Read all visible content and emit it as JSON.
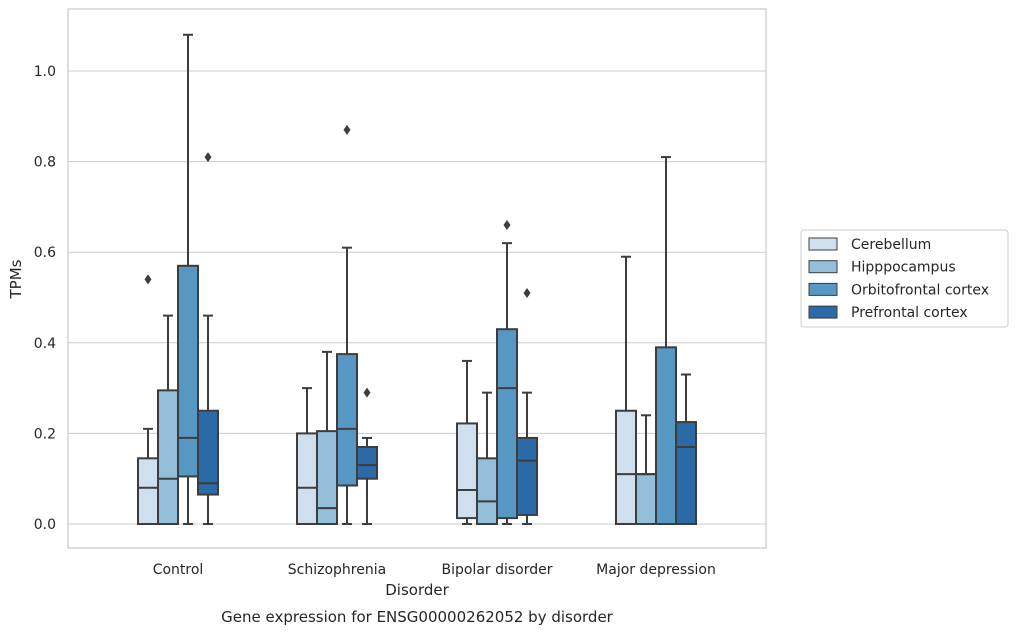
{
  "chart_data": {
    "type": "box",
    "title": "",
    "caption": "Gene expression for ENSG00000262052 by disorder",
    "xlabel": "Disorder",
    "ylabel": "TPMs",
    "ylim": [
      -0.05,
      1.14
    ],
    "yticks": [
      0.0,
      0.2,
      0.4,
      0.6,
      0.8,
      1.0
    ],
    "ytick_labels": [
      "0.0",
      "0.2",
      "0.4",
      "0.6",
      "0.8",
      "1.0"
    ],
    "categories": [
      "Control",
      "Schizophrenia",
      "Bipolar disorder",
      "Major depression"
    ],
    "grid": "horizontal",
    "legend_position": "right",
    "series": [
      {
        "name": "Cerebellum",
        "color": "#cfdfee",
        "boxes": [
          {
            "whislo": 0.0,
            "q1": 0.0,
            "med": 0.08,
            "q3": 0.145,
            "whishi": 0.21,
            "fliers": [
              0.54
            ]
          },
          {
            "whislo": 0.0,
            "q1": 0.0,
            "med": 0.08,
            "q3": 0.2,
            "whishi": 0.3,
            "fliers": []
          },
          {
            "whislo": 0.0,
            "q1": 0.013,
            "med": 0.075,
            "q3": 0.222,
            "whishi": 0.36,
            "fliers": []
          },
          {
            "whislo": 0.0,
            "q1": 0.0,
            "med": 0.11,
            "q3": 0.25,
            "whishi": 0.59,
            "fliers": []
          }
        ]
      },
      {
        "name": "Hipppocampus",
        "color": "#93bfdb",
        "boxes": [
          {
            "whislo": 0.0,
            "q1": 0.0,
            "med": 0.1,
            "q3": 0.295,
            "whishi": 0.46,
            "fliers": []
          },
          {
            "whislo": 0.0,
            "q1": 0.0,
            "med": 0.035,
            "q3": 0.205,
            "whishi": 0.38,
            "fliers": []
          },
          {
            "whislo": 0.0,
            "q1": 0.0,
            "med": 0.05,
            "q3": 0.145,
            "whishi": 0.29,
            "fliers": []
          },
          {
            "whislo": 0.0,
            "q1": 0.0,
            "med": 0.11,
            "q3": 0.11,
            "whishi": 0.24,
            "fliers": []
          }
        ]
      },
      {
        "name": "Orbitofrontal cortex",
        "color": "#5797c4",
        "boxes": [
          {
            "whislo": 0.0,
            "q1": 0.105,
            "med": 0.19,
            "q3": 0.57,
            "whishi": 1.08,
            "fliers": []
          },
          {
            "whislo": 0.0,
            "q1": 0.085,
            "med": 0.21,
            "q3": 0.375,
            "whishi": 0.61,
            "fliers": [
              0.87
            ]
          },
          {
            "whislo": 0.0,
            "q1": 0.013,
            "med": 0.3,
            "q3": 0.43,
            "whishi": 0.62,
            "fliers": [
              0.66
            ]
          },
          {
            "whislo": 0.0,
            "q1": 0.0,
            "med": 0.0,
            "q3": 0.39,
            "whishi": 0.81,
            "fliers": []
          }
        ]
      },
      {
        "name": "Prefrontal cortex",
        "color": "#2a6aa7",
        "boxes": [
          {
            "whislo": 0.0,
            "q1": 0.065,
            "med": 0.09,
            "q3": 0.25,
            "whishi": 0.46,
            "fliers": [
              0.81
            ]
          },
          {
            "whislo": 0.0,
            "q1": 0.1,
            "med": 0.13,
            "q3": 0.17,
            "whishi": 0.19,
            "fliers": [
              0.29
            ]
          },
          {
            "whislo": 0.0,
            "q1": 0.02,
            "med": 0.14,
            "q3": 0.19,
            "whishi": 0.29,
            "fliers": [
              0.51
            ]
          },
          {
            "whislo": 0.0,
            "q1": 0.0,
            "med": 0.17,
            "q3": 0.225,
            "whishi": 0.33,
            "fliers": []
          }
        ]
      }
    ]
  }
}
